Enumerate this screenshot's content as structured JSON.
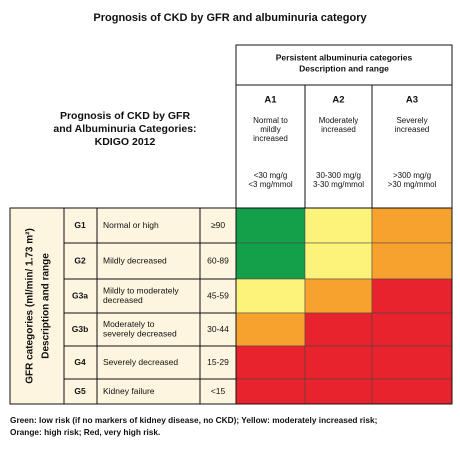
{
  "title": "Prognosis of CKD by GFR and albuminuria category",
  "corner": {
    "lines": [
      "Prognosis of CKD by GFR",
      "and Albuminuria Categories:",
      "KDIGO 2012"
    ]
  },
  "albuminuria_header": {
    "lines": [
      "Persistent albuminuria categories",
      "Description and range"
    ]
  },
  "columns": [
    {
      "code": "A1",
      "description": [
        "Normal to",
        "mildly",
        "increased"
      ],
      "range": [
        "<30 mg/g",
        "<3 mg/mmol"
      ]
    },
    {
      "code": "A2",
      "description": [
        "Moderately",
        "increased"
      ],
      "range": [
        "30-300 mg/g",
        "3-30 mg/mmol"
      ]
    },
    {
      "code": "A3",
      "description": [
        "Severely",
        "increased"
      ],
      "range": [
        ">300 mg/g",
        ">30 mg/mmol"
      ]
    }
  ],
  "gfr_header": {
    "lines": [
      "GFR categories (ml/min/ 1.73 m²)",
      "Description and range"
    ]
  },
  "rows": [
    {
      "code": "G1",
      "description": [
        "Normal or high"
      ],
      "range": "≥90"
    },
    {
      "code": "G2",
      "description": [
        "Mildly decreased"
      ],
      "range": "60-89"
    },
    {
      "code": "G3a",
      "description": [
        "Mildly to moderately",
        "decreased"
      ],
      "range": "45-59"
    },
    {
      "code": "G3b",
      "description": [
        "Moderately to",
        "severely decreased"
      ],
      "range": "30-44"
    },
    {
      "code": "G4",
      "description": [
        "Severely decreased"
      ],
      "range": "15-29"
    },
    {
      "code": "G5",
      "description": [
        "Kidney failure"
      ],
      "range": "<15"
    }
  ],
  "risk_colors": [
    [
      "#14a04a",
      "#fdf27a",
      "#f7a22e"
    ],
    [
      "#14a04a",
      "#fdf27a",
      "#f7a22e"
    ],
    [
      "#fdf27a",
      "#f7a22e",
      "#e8232d"
    ],
    [
      "#f7a22e",
      "#e8232d",
      "#e8232d"
    ],
    [
      "#e8232d",
      "#e8232d",
      "#e8232d"
    ],
    [
      "#e8232d",
      "#e8232d",
      "#e8232d"
    ]
  ],
  "footer": [
    "Green: low risk (if no markers of kidney disease, no CKD); Yellow: moderately increased risk;",
    "Orange: high risk; Red, very high risk."
  ]
}
